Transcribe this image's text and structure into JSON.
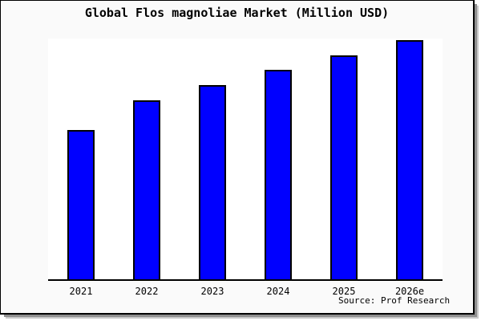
{
  "figure": {
    "title": "Global Flos magnoliae Market (Million USD)",
    "source_credit": "Source: Prof Research",
    "background": "#fafafa",
    "border_color": "#000000",
    "shadow_color": "#8f8f8f"
  },
  "plot": {
    "background": "#ffffff",
    "axis_line_color": "#000000"
  },
  "chart_data": {
    "type": "bar",
    "title": "Global Flos magnoliae Market (Million USD)",
    "categories": [
      "2021",
      "2022",
      "2023",
      "2024",
      "2025",
      "2026e"
    ],
    "values": [
      62.7,
      75.2,
      81.4,
      87.7,
      93.7,
      100
    ],
    "value_scale": "relative index, 2026e = 100 (chart shows no y-axis tick labels)",
    "xlabel": "",
    "ylabel": "",
    "ylim": [
      0,
      100.8
    ],
    "grid": false,
    "legend": null,
    "bar_fill_color": "#0000ff",
    "bar_border_color": "#000000",
    "annotations": [
      "Source: Prof Research"
    ]
  }
}
